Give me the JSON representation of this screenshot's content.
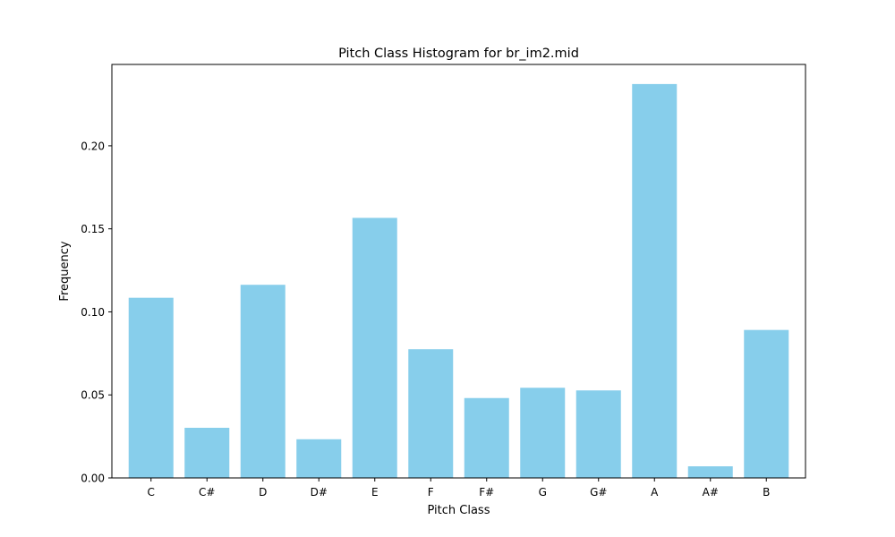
{
  "chart_data": {
    "type": "bar",
    "title": "Pitch Class Histogram for br_im2.mid",
    "xlabel": "Pitch Class",
    "ylabel": "Frequency",
    "categories": [
      "C",
      "C#",
      "D",
      "D#",
      "E",
      "F",
      "F#",
      "G",
      "G#",
      "A",
      "A#",
      "B"
    ],
    "values": [
      0.1085,
      0.0302,
      0.1163,
      0.0233,
      0.1566,
      0.0775,
      0.0481,
      0.0543,
      0.0527,
      0.2372,
      0.007,
      0.0891
    ],
    "ylim": [
      0,
      0.249
    ],
    "yticks": [
      0.0,
      0.05,
      0.1,
      0.15,
      0.2
    ],
    "ytick_labels": [
      "0.00",
      "0.05",
      "0.10",
      "0.15",
      "0.20"
    ],
    "bar_color": "#87ceeb",
    "grid": false,
    "legend": "none"
  }
}
